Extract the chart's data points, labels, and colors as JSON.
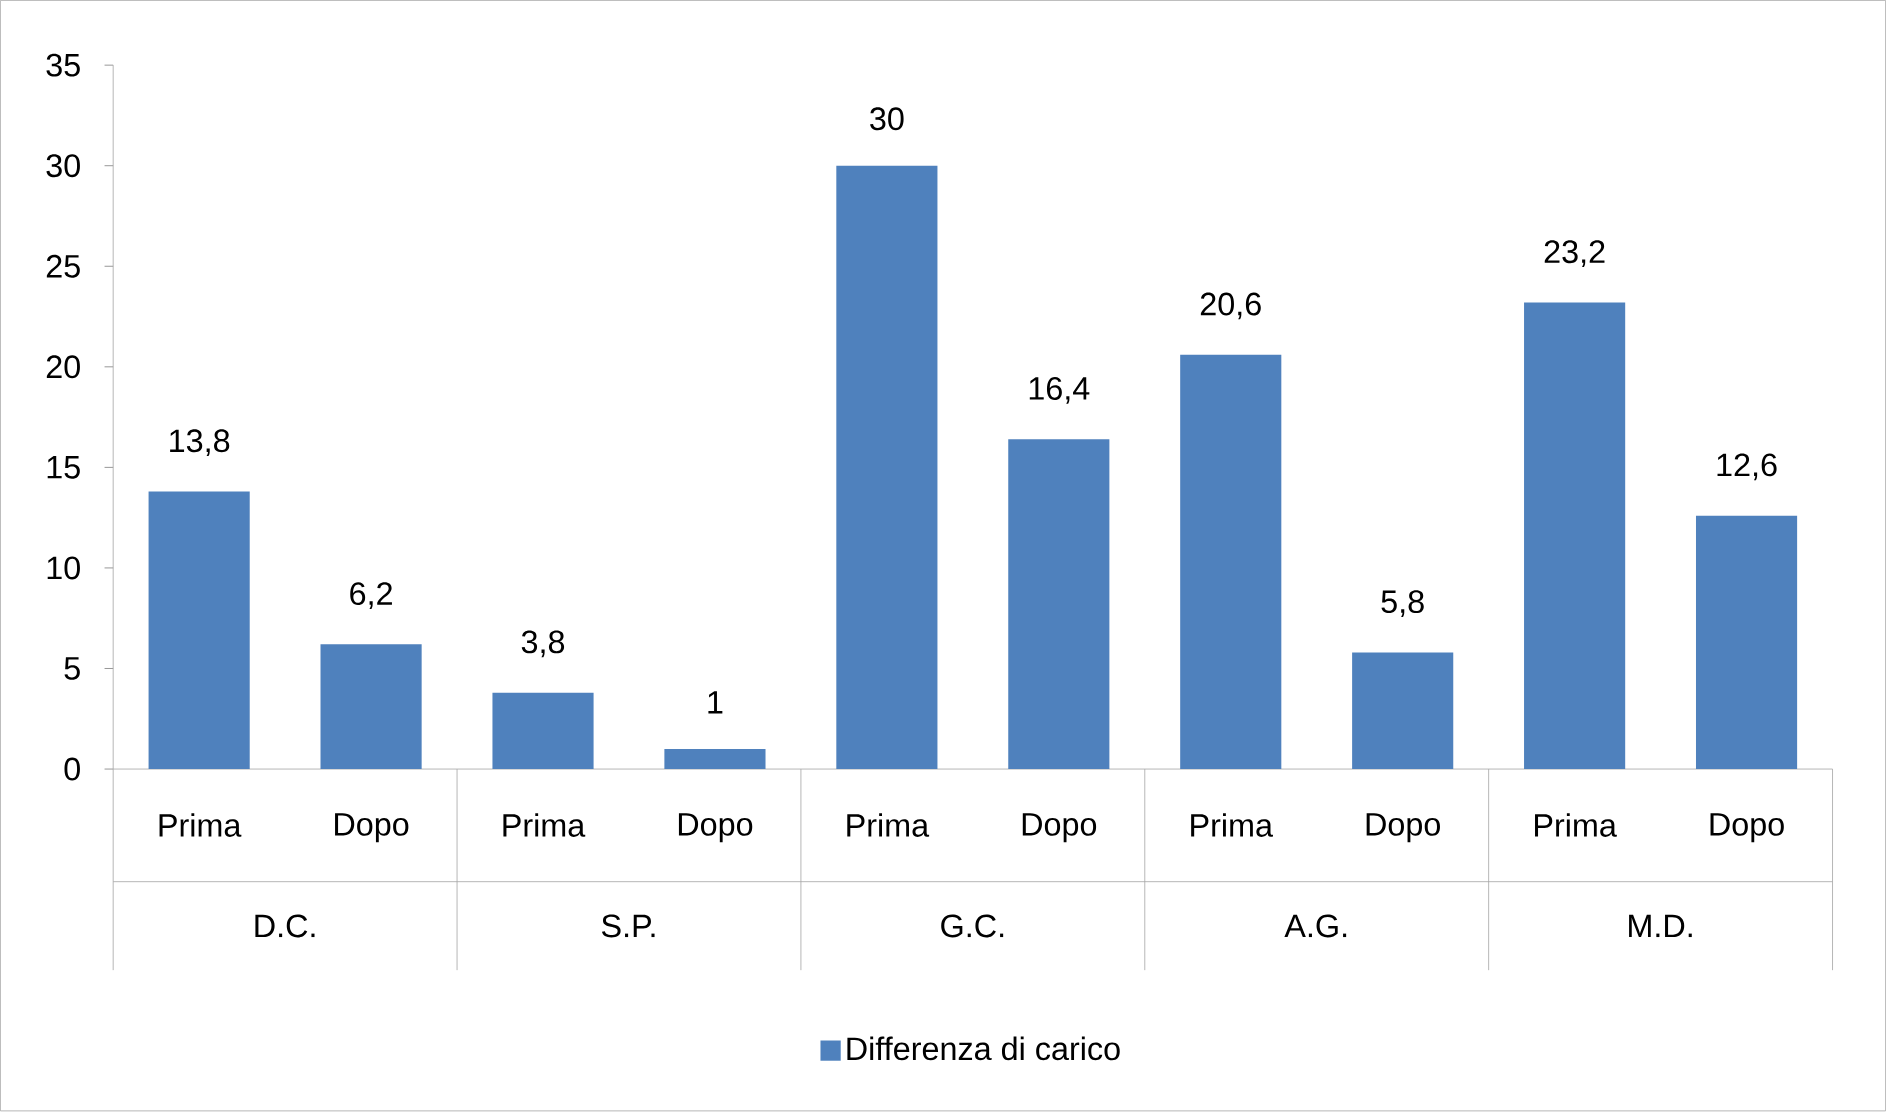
{
  "chart_data": {
    "type": "bar",
    "categories": [
      "Prima",
      "Dopo",
      "Prima",
      "Dopo",
      "Prima",
      "Dopo",
      "Prima",
      "Dopo",
      "Prima",
      "Dopo"
    ],
    "series": [
      {
        "name": "Differenza di carico",
        "color": "#4f81bd",
        "values": [
          13.8,
          6.2,
          3.8,
          1,
          30,
          16.4,
          20.6,
          5.8,
          23.2,
          12.6
        ]
      }
    ],
    "value_labels": [
      "13,8",
      "6,2",
      "3,8",
      "1",
      "30",
      "16,4",
      "20,6",
      "5,8",
      "23,2",
      "12,6"
    ],
    "annotations": [
      "D.C.",
      "S.P.",
      "G.C.",
      "A.G.",
      "M.D."
    ],
    "ylim": [
      0,
      35
    ],
    "yticks": [
      0,
      5,
      10,
      15,
      20,
      25,
      30,
      35
    ],
    "grid": false,
    "legend": "bottom"
  }
}
